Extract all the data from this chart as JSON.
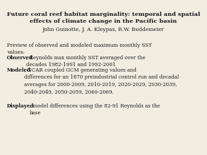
{
  "title": "Future coral reef habitat marginality: temporal and spatial\neffects of climate change in the Pacific basin",
  "authors": "John Guinotte, J. A. Kleypas, R.W. Buddemeier",
  "intro": "Preview of observed and modeled maximum monthly SST\nvalues:",
  "label_obs": "Observed",
  "rest_obs": ", Reynolds max monthly SST averaged over the\ndecades 1982-1991 and 1992-2001",
  "label_mod": "Modeled",
  "rest_mod": ", NCAR coupled GCM generating values and\ndifferences for an 1870 preindustrial control run and decadal\naverages for 2000-2009, 2010-2019, 2020-2029, 2030-2039,\n2040-2049, 2050-2059, 2060-2069.",
  "label_disp": "Displayed",
  "rest_disp": ", model differences using the 82-91 Reynolds as the\nbase",
  "bg_color": "#f2ede0",
  "text_color": "#1a1a1a",
  "title_fs": 6.0,
  "author_fs": 5.5,
  "body_fs": 5.2
}
